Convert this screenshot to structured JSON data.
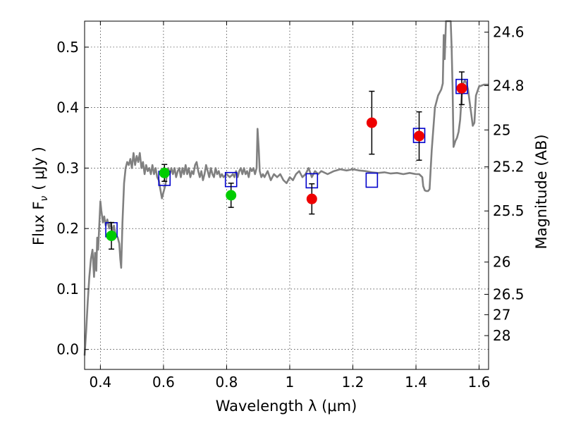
{
  "chart_data": {
    "type": "scatter",
    "xlabel": "Wavelength  λ (μm)",
    "ylabel": "Flux  F",
    "ylabel_sub": "ν",
    "ylabel_unit": "( μJy )",
    "y2label": "Magnitude (AB)",
    "xlim": [
      0.35,
      1.63
    ],
    "ylim": [
      -0.033,
      0.543
    ],
    "grid": true,
    "x_ticks": [
      {
        "value": 0.4,
        "label": "0.4"
      },
      {
        "value": 0.6,
        "label": "0.6"
      },
      {
        "value": 0.8,
        "label": "0.8"
      },
      {
        "value": 1.0,
        "label": "1"
      },
      {
        "value": 1.2,
        "label": "1.2"
      },
      {
        "value": 1.4,
        "label": "1.4"
      },
      {
        "value": 1.6,
        "label": "1.6"
      }
    ],
    "y_ticks": [
      {
        "value": 0.0,
        "label": "0.0"
      },
      {
        "value": 0.1,
        "label": "0.1"
      },
      {
        "value": 0.2,
        "label": "0.2"
      },
      {
        "value": 0.3,
        "label": "0.3"
      },
      {
        "value": 0.4,
        "label": "0.4"
      },
      {
        "value": 0.5,
        "label": "0.5"
      }
    ],
    "mag_ticks": [
      {
        "mag": 24.6,
        "label": "24.6"
      },
      {
        "mag": 24.8,
        "label": "24.8"
      },
      {
        "mag": 25.0,
        "label": "25"
      },
      {
        "mag": 25.2,
        "label": "25.2"
      },
      {
        "mag": 25.5,
        "label": "25.5"
      },
      {
        "mag": 26.0,
        "label": "26"
      },
      {
        "mag": 26.5,
        "label": "26.5"
      },
      {
        "mag": 27.0,
        "label": "27"
      },
      {
        "mag": 28.0,
        "label": "28"
      }
    ],
    "template_sed": {
      "color": "#808080",
      "points": [
        [
          0.35,
          -0.01
        ],
        [
          0.355,
          0.03
        ],
        [
          0.36,
          0.08
        ],
        [
          0.365,
          0.12
        ],
        [
          0.37,
          0.15
        ],
        [
          0.375,
          0.165
        ],
        [
          0.38,
          0.12
        ],
        [
          0.383,
          0.16
        ],
        [
          0.387,
          0.13
        ],
        [
          0.39,
          0.185
        ],
        [
          0.393,
          0.165
        ],
        [
          0.396,
          0.2
        ],
        [
          0.4,
          0.245
        ],
        [
          0.403,
          0.23
        ],
        [
          0.408,
          0.21
        ],
        [
          0.412,
          0.22
        ],
        [
          0.417,
          0.205
        ],
        [
          0.422,
          0.215
        ],
        [
          0.428,
          0.2
        ],
        [
          0.433,
          0.21
        ],
        [
          0.438,
          0.195
        ],
        [
          0.443,
          0.205
        ],
        [
          0.448,
          0.19
        ],
        [
          0.455,
          0.185
        ],
        [
          0.46,
          0.175
        ],
        [
          0.463,
          0.15
        ],
        [
          0.466,
          0.135
        ],
        [
          0.47,
          0.21
        ],
        [
          0.475,
          0.275
        ],
        [
          0.48,
          0.3
        ],
        [
          0.485,
          0.31
        ],
        [
          0.49,
          0.305
        ],
        [
          0.495,
          0.315
        ],
        [
          0.5,
          0.3
        ],
        [
          0.505,
          0.325
        ],
        [
          0.51,
          0.305
        ],
        [
          0.515,
          0.32
        ],
        [
          0.52,
          0.31
        ],
        [
          0.525,
          0.325
        ],
        [
          0.53,
          0.3
        ],
        [
          0.535,
          0.31
        ],
        [
          0.54,
          0.29
        ],
        [
          0.545,
          0.305
        ],
        [
          0.55,
          0.295
        ],
        [
          0.555,
          0.3
        ],
        [
          0.56,
          0.29
        ],
        [
          0.565,
          0.305
        ],
        [
          0.57,
          0.29
        ],
        [
          0.575,
          0.3
        ],
        [
          0.58,
          0.285
        ],
        [
          0.585,
          0.28
        ],
        [
          0.59,
          0.265
        ],
        [
          0.595,
          0.25
        ],
        [
          0.6,
          0.26
        ],
        [
          0.605,
          0.27
        ],
        [
          0.61,
          0.285
        ],
        [
          0.615,
          0.3
        ],
        [
          0.62,
          0.29
        ],
        [
          0.625,
          0.3
        ],
        [
          0.63,
          0.29
        ],
        [
          0.635,
          0.3
        ],
        [
          0.64,
          0.285
        ],
        [
          0.645,
          0.295
        ],
        [
          0.65,
          0.3
        ],
        [
          0.655,
          0.285
        ],
        [
          0.66,
          0.3
        ],
        [
          0.665,
          0.29
        ],
        [
          0.67,
          0.305
        ],
        [
          0.675,
          0.29
        ],
        [
          0.68,
          0.3
        ],
        [
          0.685,
          0.285
        ],
        [
          0.69,
          0.295
        ],
        [
          0.695,
          0.29
        ],
        [
          0.7,
          0.305
        ],
        [
          0.705,
          0.31
        ],
        [
          0.71,
          0.295
        ],
        [
          0.715,
          0.285
        ],
        [
          0.72,
          0.295
        ],
        [
          0.725,
          0.28
        ],
        [
          0.73,
          0.29
        ],
        [
          0.735,
          0.305
        ],
        [
          0.74,
          0.295
        ],
        [
          0.745,
          0.285
        ],
        [
          0.75,
          0.3
        ],
        [
          0.755,
          0.29
        ],
        [
          0.76,
          0.285
        ],
        [
          0.765,
          0.3
        ],
        [
          0.77,
          0.29
        ],
        [
          0.775,
          0.295
        ],
        [
          0.78,
          0.285
        ],
        [
          0.785,
          0.29
        ],
        [
          0.79,
          0.285
        ],
        [
          0.8,
          0.29
        ],
        [
          0.81,
          0.285
        ],
        [
          0.82,
          0.29
        ],
        [
          0.825,
          0.285
        ],
        [
          0.83,
          0.295
        ],
        [
          0.835,
          0.285
        ],
        [
          0.84,
          0.295
        ],
        [
          0.845,
          0.3
        ],
        [
          0.85,
          0.29
        ],
        [
          0.855,
          0.3
        ],
        [
          0.86,
          0.29
        ],
        [
          0.865,
          0.295
        ],
        [
          0.87,
          0.285
        ],
        [
          0.875,
          0.3
        ],
        [
          0.88,
          0.295
        ],
        [
          0.885,
          0.3
        ],
        [
          0.89,
          0.29
        ],
        [
          0.895,
          0.3
        ],
        [
          0.898,
          0.365
        ],
        [
          0.902,
          0.33
        ],
        [
          0.905,
          0.295
        ],
        [
          0.91,
          0.285
        ],
        [
          0.915,
          0.29
        ],
        [
          0.92,
          0.285
        ],
        [
          0.93,
          0.295
        ],
        [
          0.94,
          0.28
        ],
        [
          0.95,
          0.29
        ],
        [
          0.96,
          0.285
        ],
        [
          0.97,
          0.29
        ],
        [
          0.98,
          0.28
        ],
        [
          0.99,
          0.275
        ],
        [
          1.0,
          0.285
        ],
        [
          1.01,
          0.28
        ],
        [
          1.02,
          0.29
        ],
        [
          1.03,
          0.295
        ],
        [
          1.04,
          0.285
        ],
        [
          1.05,
          0.29
        ],
        [
          1.06,
          0.3
        ],
        [
          1.07,
          0.285
        ],
        [
          1.08,
          0.295
        ],
        [
          1.09,
          0.29
        ],
        [
          1.1,
          0.295
        ],
        [
          1.12,
          0.29
        ],
        [
          1.14,
          0.295
        ],
        [
          1.16,
          0.298
        ],
        [
          1.18,
          0.296
        ],
        [
          1.2,
          0.298
        ],
        [
          1.22,
          0.296
        ],
        [
          1.24,
          0.295
        ],
        [
          1.26,
          0.293
        ],
        [
          1.28,
          0.292
        ],
        [
          1.3,
          0.293
        ],
        [
          1.32,
          0.291
        ],
        [
          1.34,
          0.292
        ],
        [
          1.36,
          0.29
        ],
        [
          1.38,
          0.292
        ],
        [
          1.4,
          0.29
        ],
        [
          1.41,
          0.29
        ],
        [
          1.42,
          0.285
        ],
        [
          1.423,
          0.27
        ],
        [
          1.428,
          0.263
        ],
        [
          1.433,
          0.262
        ],
        [
          1.438,
          0.262
        ],
        [
          1.443,
          0.265
        ],
        [
          1.45,
          0.33
        ],
        [
          1.46,
          0.4
        ],
        [
          1.47,
          0.42
        ],
        [
          1.48,
          0.43
        ],
        [
          1.485,
          0.44
        ],
        [
          1.488,
          0.52
        ],
        [
          1.491,
          0.48
        ],
        [
          1.495,
          0.55
        ],
        [
          1.5,
          0.55
        ],
        [
          1.505,
          0.55
        ],
        [
          1.51,
          0.55
        ],
        [
          1.513,
          0.5
        ],
        [
          1.516,
          0.43
        ],
        [
          1.519,
          0.335
        ],
        [
          1.522,
          0.34
        ],
        [
          1.525,
          0.345
        ],
        [
          1.53,
          0.35
        ],
        [
          1.535,
          0.36
        ],
        [
          1.54,
          0.38
        ],
        [
          1.545,
          0.42
        ],
        [
          1.55,
          0.44
        ],
        [
          1.555,
          0.445
        ],
        [
          1.56,
          0.44
        ],
        [
          1.565,
          0.43
        ],
        [
          1.57,
          0.41
        ],
        [
          1.575,
          0.39
        ],
        [
          1.58,
          0.37
        ],
        [
          1.585,
          0.375
        ],
        [
          1.59,
          0.42
        ],
        [
          1.6,
          0.435
        ],
        [
          1.615,
          0.438
        ],
        [
          1.63,
          0.438
        ]
      ]
    },
    "model_fluxes": {
      "marker": "open-square",
      "color": "#0000cc",
      "points": [
        [
          0.435,
          0.198
        ],
        [
          0.603,
          0.283
        ],
        [
          0.814,
          0.281
        ],
        [
          1.07,
          0.279
        ],
        [
          1.26,
          0.28
        ],
        [
          1.41,
          0.354
        ],
        [
          1.545,
          0.435
        ]
      ]
    },
    "observed_green": {
      "marker": "filled-circle",
      "color": "#00cc00",
      "points": [
        {
          "x": 0.435,
          "y": 0.188,
          "err": 0.022
        },
        {
          "x": 0.603,
          "y": 0.292,
          "err": 0.014
        },
        {
          "x": 0.814,
          "y": 0.255,
          "err": 0.02
        }
      ]
    },
    "observed_red": {
      "marker": "filled-circle",
      "color": "#ee0000",
      "points": [
        {
          "x": 1.07,
          "y": 0.249,
          "err": 0.025
        },
        {
          "x": 1.26,
          "y": 0.375,
          "err": 0.052
        },
        {
          "x": 1.41,
          "y": 0.353,
          "err": 0.04
        },
        {
          "x": 1.545,
          "y": 0.432,
          "err": 0.027
        }
      ]
    }
  }
}
